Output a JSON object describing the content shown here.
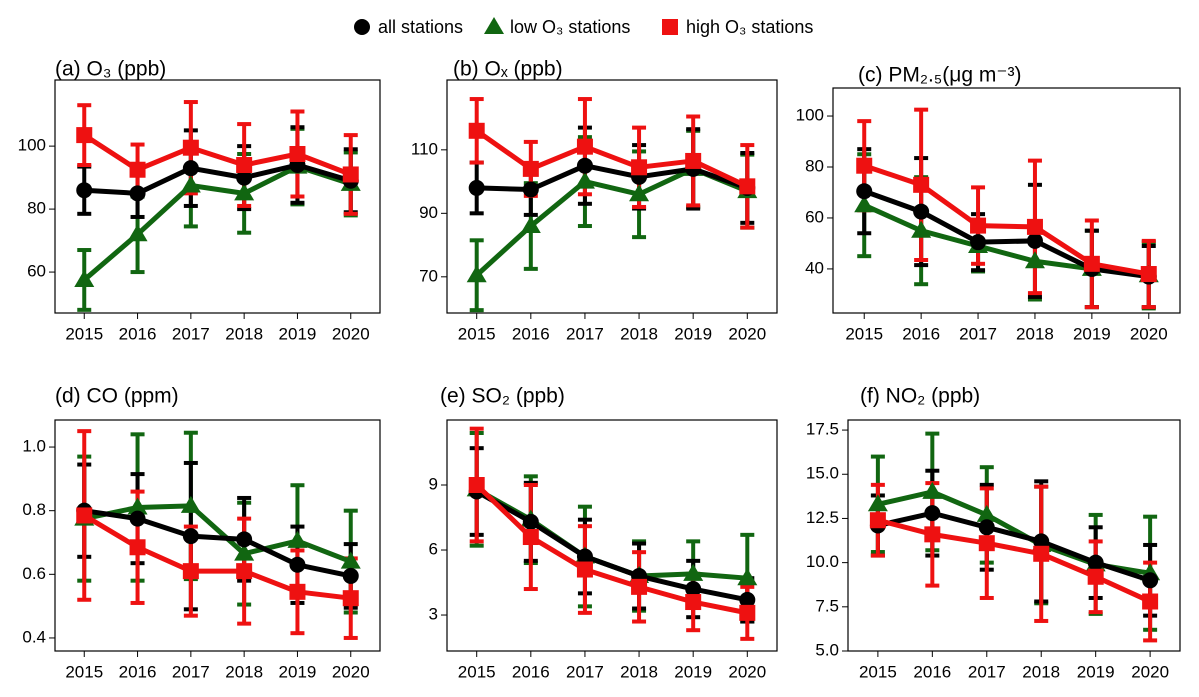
{
  "legend": [
    {
      "name": "all stations",
      "color": "#000000",
      "marker": "circle"
    },
    {
      "name": "low O₃ stations",
      "color": "#116611",
      "marker": "triangle"
    },
    {
      "name": "high O₃ stations",
      "color": "#ee1111",
      "marker": "square"
    }
  ],
  "chart_data": [
    {
      "type": "line",
      "title": "(a) O₃ (ppb)",
      "categories": [
        "2015",
        "2016",
        "2017",
        "2018",
        "2019",
        "2020"
      ],
      "ylim": [
        47,
        121
      ],
      "yticks": [
        60,
        80,
        100
      ],
      "series": [
        {
          "values": [
            86,
            85,
            93,
            90,
            94,
            89
          ],
          "errors": [
            7.5,
            7.5,
            12,
            10,
            12,
            10
          ]
        },
        {
          "values": [
            57.5,
            72,
            87.5,
            85,
            93.5,
            88
          ],
          "errors": [
            9.5,
            12,
            13,
            12.5,
            12,
            10
          ]
        },
        {
          "values": [
            103.5,
            92.5,
            99.5,
            94,
            97.5,
            91
          ],
          "errors": [
            9.5,
            8,
            14.5,
            13,
            13.5,
            12.5
          ]
        }
      ]
    },
    {
      "type": "line",
      "title": "(b) Oₓ (ppb)",
      "categories": [
        "2015",
        "2016",
        "2017",
        "2018",
        "2019",
        "2020"
      ],
      "ylim": [
        58.6,
        132
      ],
      "yticks": [
        70,
        90,
        110
      ],
      "series": [
        {
          "values": [
            98,
            97.5,
            105,
            101.5,
            104,
            98
          ],
          "errors": [
            8,
            8,
            12,
            10,
            12.5,
            11
          ]
        },
        {
          "values": [
            70.5,
            86,
            100,
            96,
            104,
            97
          ],
          "errors": [
            11,
            13.5,
            14,
            13.5,
            12,
            11.5
          ]
        },
        {
          "values": [
            116,
            104,
            111,
            104.5,
            106.5,
            98.5
          ],
          "errors": [
            10,
            8.5,
            15,
            12.5,
            14,
            13
          ]
        }
      ]
    },
    {
      "type": "line",
      "title": "(c) PM₂.₅(μg m⁻³)",
      "categories": [
        "2015",
        "2016",
        "2017",
        "2018",
        "2019",
        "2020"
      ],
      "ylim": [
        22.7,
        111
      ],
      "yticks": [
        40,
        60,
        80,
        100
      ],
      "series": [
        {
          "values": [
            70.5,
            62.5,
            50.5,
            51,
            40,
            37
          ],
          "errors": [
            16.5,
            21,
            11,
            22,
            15,
            12
          ]
        },
        {
          "values": [
            65,
            55,
            49,
            43,
            40,
            37.5
          ],
          "errors": [
            20,
            21,
            10,
            15,
            15,
            13
          ]
        },
        {
          "values": [
            80.5,
            73,
            57,
            56.5,
            42,
            38
          ],
          "errors": [
            17.5,
            29.5,
            15,
            26,
            17,
            13
          ]
        }
      ]
    },
    {
      "type": "line",
      "title": "(d) CO (ppm)",
      "categories": [
        "2015",
        "2016",
        "2017",
        "2018",
        "2019",
        "2020"
      ],
      "ylim": [
        0.359,
        1.085
      ],
      "yticks": [
        0.4,
        0.6,
        0.8,
        {
          "value": 1,
          "label": "1.0"
        }
      ],
      "series": [
        {
          "values": [
            0.8,
            0.775,
            0.72,
            0.71,
            0.63,
            0.595
          ],
          "errors": [
            0.145,
            0.14,
            0.23,
            0.13,
            0.12,
            0.1
          ]
        },
        {
          "values": [
            0.775,
            0.81,
            0.815,
            0.665,
            0.705,
            0.64
          ],
          "errors": [
            0.195,
            0.23,
            0.23,
            0.16,
            0.175,
            0.16
          ]
        },
        {
          "values": [
            0.785,
            0.685,
            0.61,
            0.61,
            0.545,
            0.525
          ],
          "errors": [
            0.265,
            0.175,
            0.14,
            0.165,
            0.13,
            0.125
          ]
        }
      ]
    },
    {
      "type": "line",
      "title": "(e) SO₂ (ppb)",
      "categories": [
        "2015",
        "2016",
        "2017",
        "2018",
        "2019",
        "2020"
      ],
      "ylim": [
        1.34,
        12
      ],
      "yticks": [
        3,
        6,
        9
      ],
      "series": [
        {
          "values": [
            8.7,
            7.3,
            5.7,
            4.8,
            4.2,
            3.7
          ],
          "errors": [
            2,
            1.8,
            1.7,
            1.5,
            1.3,
            1
          ]
        },
        {
          "values": [
            8.8,
            7.4,
            5.7,
            4.8,
            4.9,
            4.7
          ],
          "errors": [
            2.6,
            2,
            2.3,
            1.6,
            1.5,
            2
          ]
        },
        {
          "values": [
            9,
            6.6,
            5.1,
            4.3,
            3.6,
            3.1
          ],
          "errors": [
            2.6,
            2.4,
            2,
            1.6,
            1.3,
            1.2
          ]
        }
      ]
    },
    {
      "type": "line",
      "title": "(f) NO₂ (ppb)",
      "categories": [
        "2015",
        "2016",
        "2017",
        "2018",
        "2019",
        "2020"
      ],
      "ylim": [
        5,
        18.07
      ],
      "yticks": [
        {
          "value": 5,
          "label": "5.0"
        },
        7.5,
        {
          "value": 10,
          "label": "10.0"
        },
        12.5,
        {
          "value": 15,
          "label": "15.0"
        },
        17.5
      ],
      "series": [
        {
          "values": [
            12.1,
            12.8,
            12,
            11.2,
            10,
            9
          ],
          "errors": [
            1.7,
            2.4,
            2.4,
            3.4,
            2,
            2
          ]
        },
        {
          "values": [
            13.3,
            14,
            12.7,
            11,
            9.9,
            9.4
          ],
          "errors": [
            2.7,
            3.3,
            2.7,
            3.3,
            2.8,
            3.2
          ]
        },
        {
          "values": [
            12.4,
            11.6,
            11.1,
            10.5,
            9.2,
            7.8
          ],
          "errors": [
            2,
            2.9,
            3.1,
            3.8,
            2,
            2.2
          ]
        }
      ]
    }
  ]
}
